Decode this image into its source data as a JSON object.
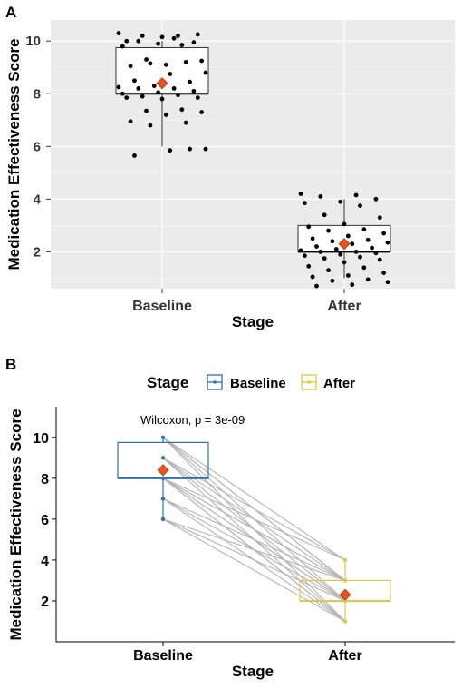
{
  "chart_data": [
    {
      "panel": "A",
      "type": "box",
      "xlabel": "Stage",
      "ylabel": "Medication Effectiveness Score",
      "categories": [
        "Baseline",
        "After"
      ],
      "ylim": [
        0.6,
        10.8
      ],
      "yticks": [
        2,
        4,
        6,
        8,
        10
      ],
      "grid": true,
      "boxes": [
        {
          "category": "Baseline",
          "q1": 8.0,
          "median": 8.0,
          "q3": 9.75,
          "whisker_low": 6.0,
          "whisker_high": 10.0,
          "mean": 8.4
        },
        {
          "category": "After",
          "q1": 2.0,
          "median": 2.0,
          "q3": 3.0,
          "whisker_low": 1.0,
          "whisker_high": 4.0,
          "mean": 2.3
        }
      ],
      "points": [
        {
          "category": "Baseline",
          "values": [
            10.3,
            10.1,
            10.0,
            9.95,
            9.9,
            9.8,
            10.2,
            10.2,
            10.25,
            10.15,
            10.0,
            9.85,
            9.3,
            9.25,
            9.1,
            9.05,
            9.2,
            9.15,
            8.8,
            8.75,
            8.5,
            8.45,
            8.3,
            8.25,
            8.2,
            8.2,
            8.1,
            8.05,
            8.0,
            7.95,
            7.9,
            7.85,
            7.8,
            7.85,
            7.4,
            7.35,
            7.3,
            7.2,
            6.95,
            6.9,
            6.8,
            5.9,
            5.85,
            5.65,
            5.9
          ]
        },
        {
          "category": "After",
          "values": [
            4.2,
            4.15,
            4.1,
            4.0,
            3.9,
            3.85,
            3.75,
            3.4,
            3.3,
            3.05,
            2.95,
            2.85,
            2.8,
            2.7,
            2.6,
            2.5,
            2.45,
            2.4,
            2.35,
            2.3,
            2.2,
            2.15,
            2.1,
            2.05,
            2.0,
            2.0,
            1.95,
            1.9,
            1.85,
            1.8,
            1.75,
            1.7,
            1.6,
            1.45,
            1.4,
            1.3,
            1.2,
            1.1,
            1.05,
            0.95,
            0.9,
            0.85,
            0.75,
            0.7
          ]
        }
      ]
    },
    {
      "panel": "B",
      "type": "box",
      "xlabel": "Stage",
      "ylabel": "Medication Effectiveness Score",
      "categories": [
        "Baseline",
        "After"
      ],
      "ylim": [
        0,
        11.5
      ],
      "yticks": [
        2,
        4,
        6,
        8,
        10
      ],
      "grid": false,
      "legend": {
        "title": "Stage",
        "entries": [
          "Baseline",
          "After"
        ],
        "placement": "top"
      },
      "annotation": "Wilcoxon, p = 3e-09",
      "colors": {
        "Baseline": "#2c73b2",
        "After": "#dccb3e"
      },
      "boxes": [
        {
          "category": "Baseline",
          "q1": 8.0,
          "median": 8.0,
          "q3": 9.75,
          "whisker_low": 6.0,
          "whisker_high": 10.0,
          "mean": 8.4
        },
        {
          "category": "After",
          "q1": 2.0,
          "median": 2.0,
          "q3": 3.0,
          "whisker_low": 1.0,
          "whisker_high": 4.0,
          "mean": 2.3
        }
      ],
      "paired_lines": [
        [
          10,
          4
        ],
        [
          10,
          3
        ],
        [
          10,
          2
        ],
        [
          10,
          1
        ],
        [
          10,
          3
        ],
        [
          9,
          3
        ],
        [
          9,
          2
        ],
        [
          9,
          1
        ],
        [
          9,
          4
        ],
        [
          8,
          1
        ],
        [
          8,
          2
        ],
        [
          8,
          3
        ],
        [
          8,
          4
        ],
        [
          8,
          2
        ],
        [
          8,
          1
        ],
        [
          8,
          3
        ],
        [
          7,
          2
        ],
        [
          7,
          3
        ],
        [
          7,
          1
        ],
        [
          6,
          2
        ],
        [
          6,
          3
        ],
        [
          6,
          1
        ]
      ]
    }
  ]
}
